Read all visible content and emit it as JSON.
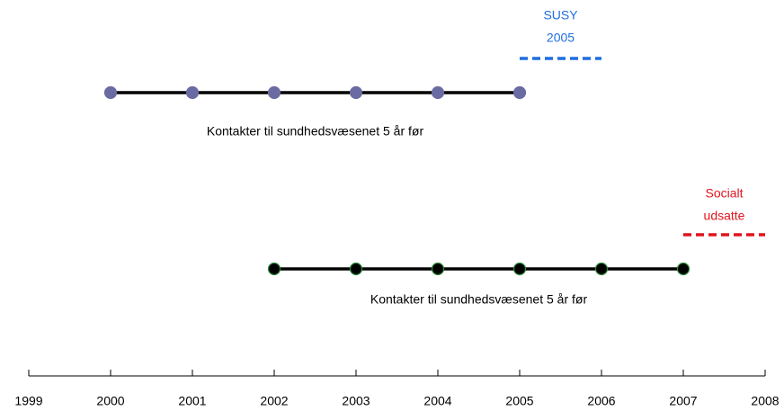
{
  "axis": {
    "xlim": [
      1999,
      2008
    ],
    "ticks": [
      1999,
      2000,
      2001,
      2002,
      2003,
      2004,
      2005,
      2006,
      2007,
      2008
    ]
  },
  "timelines": [
    {
      "years": [
        2000,
        2001,
        2002,
        2003,
        2004,
        2005
      ],
      "color": "#6b6ba3",
      "outline": "#6b6ba3",
      "label": "Kontakter til sundhedsvæsenet 5 år før",
      "cohort": {
        "lines": [
          "SUSY",
          "2005"
        ],
        "start": 2005,
        "end": 2006,
        "color": "#1f6fe0"
      }
    },
    {
      "years": [
        2002,
        2003,
        2004,
        2005,
        2006,
        2007
      ],
      "color": "#000000",
      "outline": "#2e8b3a",
      "label": "Kontakter til sundhedsvæsenet 5 år før",
      "cohort": {
        "lines": [
          "Socialt",
          "udsatte"
        ],
        "start": 2007,
        "end": 2008,
        "color": "#e0141e"
      }
    }
  ]
}
